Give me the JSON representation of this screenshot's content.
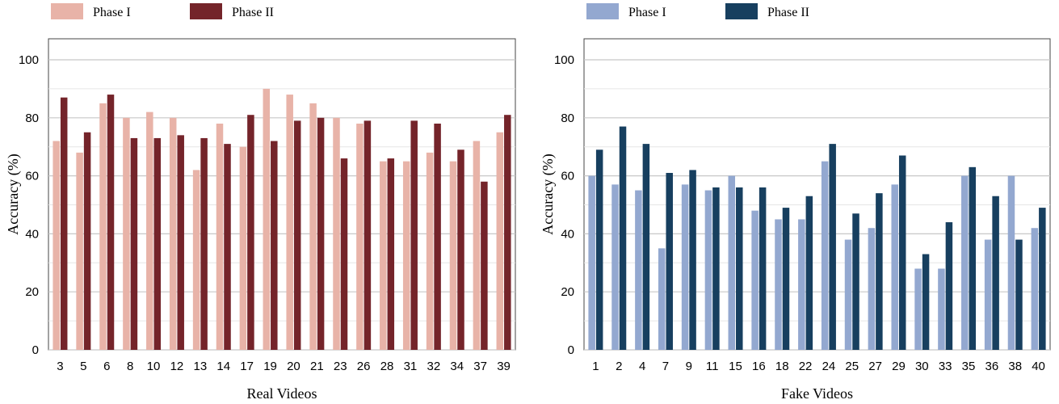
{
  "chart_data": [
    {
      "type": "bar",
      "xlabel": "Real Videos",
      "ylabel": "Accuracy (%)",
      "ylim": [
        0,
        100
      ],
      "yticks": [
        0,
        20,
        40,
        60,
        80,
        100
      ],
      "grid": true,
      "legend_position": "top-left",
      "categories": [
        "3",
        "5",
        "6",
        "8",
        "10",
        "12",
        "13",
        "14",
        "17",
        "19",
        "20",
        "21",
        "23",
        "26",
        "28",
        "31",
        "32",
        "34",
        "37",
        "39"
      ],
      "series": [
        {
          "name": "Phase I",
          "color": "#e8b3a8",
          "values": [
            72,
            68,
            85,
            80,
            82,
            80,
            62,
            78,
            70,
            90,
            88,
            85,
            80,
            78,
            65,
            65,
            68,
            65,
            72,
            75
          ]
        },
        {
          "name": "Phase II",
          "color": "#74242a",
          "values": [
            87,
            75,
            88,
            73,
            73,
            74,
            73,
            71,
            81,
            72,
            79,
            80,
            66,
            79,
            66,
            79,
            78,
            69,
            58,
            81
          ]
        }
      ]
    },
    {
      "type": "bar",
      "xlabel": "Fake Videos",
      "ylabel": "Accuracy (%)",
      "ylim": [
        0,
        100
      ],
      "yticks": [
        0,
        20,
        40,
        60,
        80,
        100
      ],
      "grid": true,
      "legend_position": "top-left",
      "categories": [
        "1",
        "2",
        "4",
        "7",
        "9",
        "11",
        "15",
        "16",
        "18",
        "22",
        "24",
        "25",
        "27",
        "29",
        "30",
        "33",
        "35",
        "36",
        "38",
        "40"
      ],
      "series": [
        {
          "name": "Phase I",
          "color": "#93a8d0",
          "values": [
            60,
            57,
            55,
            35,
            57,
            55,
            60,
            48,
            45,
            45,
            65,
            38,
            42,
            57,
            28,
            28,
            60,
            38,
            60,
            42
          ]
        },
        {
          "name": "Phase II",
          "color": "#173f5f",
          "values": [
            69,
            77,
            71,
            61,
            62,
            56,
            56,
            56,
            49,
            53,
            71,
            47,
            54,
            67,
            33,
            44,
            63,
            53,
            38,
            49
          ]
        }
      ]
    }
  ]
}
